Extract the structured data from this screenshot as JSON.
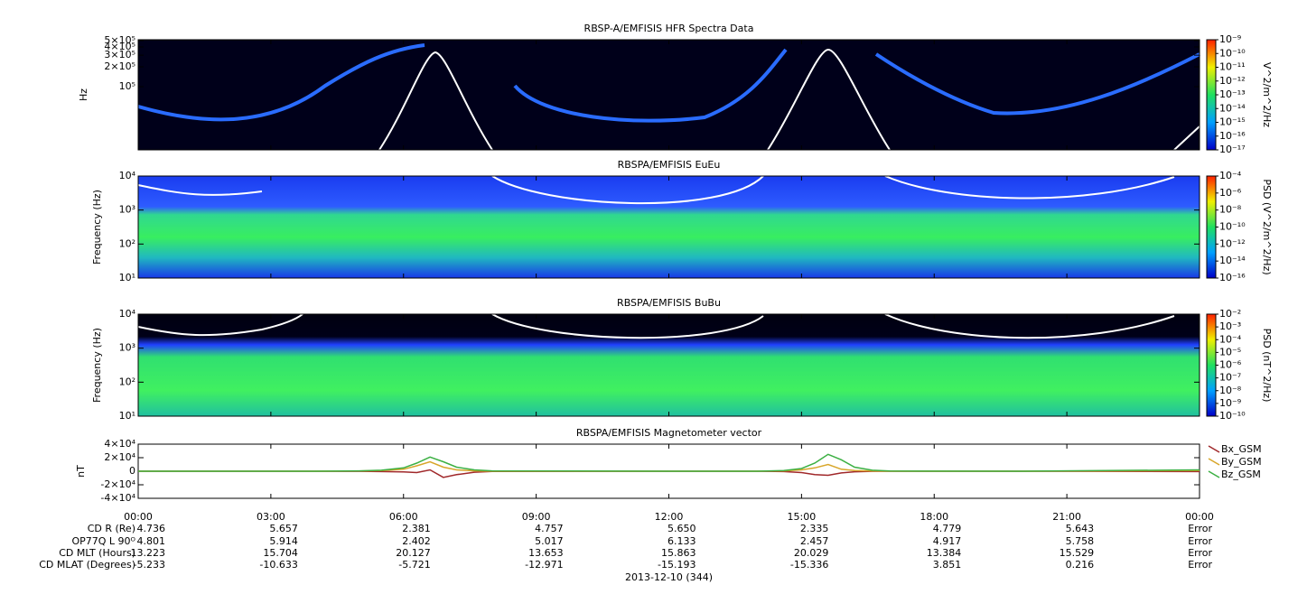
{
  "chart_data": [
    {
      "type": "spectrogram",
      "title": "RBSP-A/EMFISIS  HFR Spectra Data",
      "y_label": "Hz",
      "log_y": true,
      "ylim": [
        11000,
        515000
      ],
      "yticks": [
        {
          "value": 500000,
          "label": "5×10⁵"
        },
        {
          "value": 400000,
          "label": "4×10⁵"
        },
        {
          "value": 300000,
          "label": "3×10⁵"
        },
        {
          "value": 200000,
          "label": "2×10⁵"
        },
        {
          "value": 100000,
          "label": "10⁵"
        }
      ],
      "colorbar_label": "V^2/m^2/Hz",
      "clim": [
        1e-17,
        1e-09
      ],
      "cticks": [
        {
          "value": 1e-09,
          "label": "10⁻⁹"
        },
        {
          "value": 1e-10,
          "label": "10⁻¹⁰"
        },
        {
          "value": 1e-11,
          "label": "10⁻¹¹"
        },
        {
          "value": 1e-12,
          "label": "10⁻¹²"
        },
        {
          "value": 1e-13,
          "label": "10⁻¹³"
        },
        {
          "value": 1e-14,
          "label": "10⁻¹⁴"
        },
        {
          "value": 1e-15,
          "label": "10⁻¹⁵"
        },
        {
          "value": 1e-16,
          "label": "10⁻¹⁶"
        },
        {
          "value": 1e-17,
          "label": "10⁻¹⁷"
        }
      ]
    },
    {
      "type": "spectrogram",
      "title": "RBSPA/EMFISIS  EuEu",
      "y_label": "Frequency (Hz)",
      "log_y": true,
      "ylim": [
        10,
        10000
      ],
      "yticks": [
        {
          "value": 10000,
          "label": "10⁴"
        },
        {
          "value": 1000,
          "label": "10³"
        },
        {
          "value": 100,
          "label": "10²"
        },
        {
          "value": 10,
          "label": "10¹"
        }
      ],
      "colorbar_label": "PSD (V^2/m^2/Hz)",
      "clim": [
        1e-16,
        0.0001
      ],
      "cticks": [
        {
          "value": 0.0001,
          "label": "10⁻⁴"
        },
        {
          "value": 1e-06,
          "label": "10⁻⁶"
        },
        {
          "value": 1e-08,
          "label": "10⁻⁸"
        },
        {
          "value": 1e-10,
          "label": "10⁻¹⁰"
        },
        {
          "value": 1e-12,
          "label": "10⁻¹²"
        },
        {
          "value": 1e-14,
          "label": "10⁻¹⁴"
        },
        {
          "value": 1e-16,
          "label": "10⁻¹⁶"
        }
      ]
    },
    {
      "type": "spectrogram",
      "title": "RBSPA/EMFISIS  BuBu",
      "y_label": "Frequency (Hz)",
      "log_y": true,
      "ylim": [
        10,
        10000
      ],
      "yticks": [
        {
          "value": 10000,
          "label": "10⁴"
        },
        {
          "value": 1000,
          "label": "10³"
        },
        {
          "value": 100,
          "label": "10²"
        },
        {
          "value": 10,
          "label": "10¹"
        }
      ],
      "colorbar_label": "PSD (nT^2/Hz)",
      "clim": [
        1e-10,
        0.01
      ],
      "cticks": [
        {
          "value": 0.01,
          "label": "10⁻²"
        },
        {
          "value": 0.001,
          "label": "10⁻³"
        },
        {
          "value": 0.0001,
          "label": "10⁻⁴"
        },
        {
          "value": 1e-05,
          "label": "10⁻⁵"
        },
        {
          "value": 1e-06,
          "label": "10⁻⁶"
        },
        {
          "value": 1e-07,
          "label": "10⁻⁷"
        },
        {
          "value": 1e-08,
          "label": "10⁻⁸"
        },
        {
          "value": 1e-09,
          "label": "10⁻⁹"
        },
        {
          "value": 1e-10,
          "label": "10⁻¹⁰"
        }
      ]
    },
    {
      "type": "line",
      "title": "RBSPA/EMFISIS  Magnetometer vector",
      "y_label": "nT",
      "xlim": [
        0,
        24
      ],
      "ylim": [
        -40000,
        40000
      ],
      "yticks": [
        {
          "value": 40000,
          "label": "4×10⁴"
        },
        {
          "value": 20000,
          "label": "2×10⁴"
        },
        0,
        {
          "value": -20000,
          "label": "-2×10⁴"
        },
        {
          "value": -40000,
          "label": "-4×10⁴"
        }
      ],
      "xticks": [
        {
          "value": 0,
          "label": "00:00"
        },
        {
          "value": 3,
          "label": "03:00"
        },
        {
          "value": 6,
          "label": "06:00"
        },
        {
          "value": 9,
          "label": "09:00"
        },
        {
          "value": 12,
          "label": "12:00"
        },
        {
          "value": 15,
          "label": "15:00"
        },
        {
          "value": 18,
          "label": "18:00"
        },
        {
          "value": 21,
          "label": "21:00"
        },
        {
          "value": 24,
          "label": "00:00"
        }
      ],
      "x": [
        0,
        4,
        5,
        5.5,
        6,
        6.3,
        6.6,
        6.9,
        7.2,
        7.6,
        8,
        12,
        14,
        14.6,
        15,
        15.3,
        15.6,
        15.9,
        16.2,
        16.6,
        17,
        20,
        24
      ],
      "series": [
        {
          "name": "Bx_GSM",
          "color": "#a0282a",
          "values": [
            0,
            0,
            -200,
            -500,
            -1000,
            -2000,
            2000,
            -9000,
            -5000,
            -1500,
            -300,
            0,
            0,
            -500,
            -2000,
            -5000,
            -6000,
            -2500,
            -800,
            -200,
            0,
            0,
            -500
          ]
        },
        {
          "name": "By_GSM",
          "color": "#d8a62a",
          "values": [
            0,
            0,
            300,
            1000,
            3000,
            8000,
            14000,
            6000,
            2000,
            500,
            0,
            0,
            0,
            500,
            2000,
            5000,
            10000,
            3000,
            1000,
            300,
            0,
            0,
            1000
          ]
        },
        {
          "name": "Bz_GSM",
          "color": "#3cb043",
          "values": [
            0,
            0,
            500,
            1500,
            5000,
            12000,
            21000,
            14000,
            6000,
            2000,
            500,
            0,
            0,
            1000,
            4000,
            12000,
            25000,
            17000,
            6000,
            1500,
            300,
            0,
            2000
          ]
        }
      ],
      "legend": "right"
    }
  ],
  "ephemeris": {
    "labels": [
      "CD R (Re)",
      "OP77Q L 90ᴼ",
      "CD MLT (Hours)",
      "CD MLAT (Degrees)"
    ],
    "rows": [
      [
        "4.736",
        "5.657",
        "2.381",
        "4.757",
        "5.650",
        "2.335",
        "4.779",
        "5.643",
        "Error"
      ],
      [
        "4.801",
        "5.914",
        "2.402",
        "5.017",
        "6.133",
        "2.457",
        "4.917",
        "5.758",
        "Error"
      ],
      [
        "13.223",
        "15.704",
        "20.127",
        "13.653",
        "15.863",
        "20.029",
        "13.384",
        "15.529",
        "Error"
      ],
      [
        "-5.233",
        "-10.633",
        "-5.721",
        "-12.971",
        "-15.193",
        "-15.336",
        "3.851",
        "0.216",
        "Error"
      ]
    ],
    "date": "2013-12-10 (344)"
  }
}
